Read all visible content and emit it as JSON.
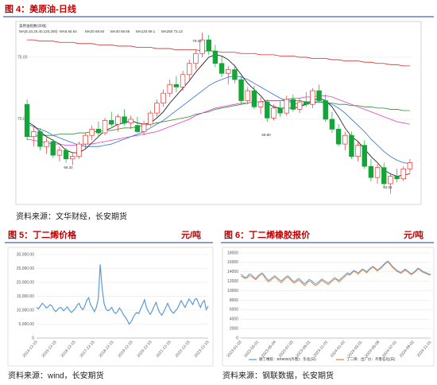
{
  "chart_data": [
    {
      "type": "candlestick",
      "title": "图 4：美原油-日线",
      "source": "资料来源：文华财经，长安期货",
      "label": "美原油指数(日线)",
      "legend_title": "MA(5,10,20,40,120,250)",
      "up_color": "#e8322e",
      "down_color": "#13a538",
      "ylim": [
        63.9,
        77.05
      ],
      "yticks": [
        {
          "value": 75,
          "label": "75.00"
        },
        {
          "value": 70,
          "label": "70.00"
        }
      ],
      "open": [
        71.2,
        68.6,
        69.0,
        67.8,
        68.2,
        67.1,
        67.5,
        66.8,
        67.0,
        68.0,
        68.7,
        69.2,
        68.9,
        69.9,
        69.6,
        70.2,
        69.7,
        69.5,
        69.0,
        69.6,
        70.5,
        71.3,
        72.1,
        72.8,
        72.6,
        73.6,
        74.5,
        75.3,
        76.4,
        75.5,
        74.5,
        73.7,
        74.0,
        73.2,
        71.5,
        72.3,
        71.0,
        71.4,
        70.1,
        70.9,
        70.5,
        71.6,
        70.8,
        71.4,
        71.2,
        72.3,
        71.5,
        70.0,
        69.2,
        68.0,
        68.7,
        67.0,
        67.9,
        66.2,
        65.3,
        66.1,
        64.8,
        65.4,
        65.2,
        66.0
      ],
      "high": [
        71.6,
        69.4,
        69.3,
        68.5,
        68.4,
        67.8,
        67.7,
        67.3,
        68.2,
        68.9,
        69.5,
        69.8,
        70.1,
        70.6,
        70.4,
        70.8,
        70.3,
        70.2,
        69.9,
        70.7,
        71.6,
        72.4,
        73.2,
        73.5,
        73.9,
        74.8,
        75.6,
        77.0,
        76.8,
        76.0,
        75.1,
        74.3,
        74.4,
        73.5,
        72.6,
        72.7,
        71.8,
        71.6,
        71.2,
        71.5,
        71.9,
        72.0,
        71.7,
        72.2,
        72.5,
        72.8,
        72.0,
        70.6,
        69.6,
        69.0,
        69.0,
        68.2,
        68.3,
        66.8,
        66.4,
        66.5,
        65.6,
        66.0,
        66.2,
        66.8
      ],
      "low": [
        68.3,
        67.8,
        67.5,
        67.2,
        66.9,
        66.6,
        66.5,
        66.3,
        66.8,
        67.6,
        68.3,
        68.6,
        68.7,
        69.4,
        69.0,
        69.5,
        69.2,
        68.9,
        68.7,
        69.4,
        70.2,
        71.0,
        71.8,
        72.2,
        72.3,
        73.2,
        74.0,
        75.0,
        75.2,
        74.2,
        73.4,
        72.8,
        72.9,
        71.2,
        71.2,
        70.8,
        70.4,
        69.8,
        69.9,
        70.2,
        70.3,
        70.6,
        70.5,
        71.0,
        70.9,
        71.3,
        69.8,
        68.9,
        67.8,
        67.5,
        66.8,
        66.6,
        66.0,
        65.0,
        64.8,
        64.5,
        64.0,
        64.9,
        65.0,
        65.7
      ],
      "close": [
        68.6,
        69.0,
        67.8,
        68.2,
        67.1,
        67.5,
        66.8,
        67.0,
        68.0,
        68.7,
        69.2,
        68.9,
        69.9,
        69.6,
        70.2,
        69.7,
        70.0,
        69.0,
        69.6,
        70.5,
        71.3,
        72.1,
        72.8,
        72.6,
        73.6,
        74.5,
        75.3,
        76.4,
        75.5,
        74.5,
        73.7,
        74.0,
        73.2,
        71.5,
        72.3,
        71.0,
        71.4,
        70.1,
        70.9,
        70.5,
        71.6,
        70.8,
        71.4,
        71.2,
        72.3,
        71.5,
        70.0,
        69.2,
        68.0,
        68.7,
        67.0,
        67.9,
        66.2,
        65.3,
        66.1,
        64.8,
        65.4,
        65.2,
        66.0,
        66.5
      ],
      "series": [
        {
          "name": "MA5 65.54",
          "color": "#111111",
          "values": [
            69.8,
            69.5,
            69.0,
            68.6,
            68.3,
            68.0,
            67.5,
            67.3,
            67.3,
            67.6,
            68.1,
            68.6,
            69.1,
            69.3,
            69.6,
            69.7,
            69.9,
            69.7,
            69.6,
            69.7,
            70.1,
            70.6,
            71.3,
            71.9,
            72.5,
            73.1,
            73.8,
            74.4,
            75.0,
            75.2,
            75.1,
            74.8,
            74.3,
            73.6,
            72.9,
            72.4,
            71.9,
            71.3,
            71.0,
            70.9,
            70.9,
            70.9,
            71.0,
            71.2,
            71.5,
            71.7,
            71.5,
            71.0,
            70.2,
            69.3,
            68.6,
            68.2,
            67.6,
            67.0,
            66.5,
            65.9,
            65.6,
            65.4,
            65.5,
            65.6
          ]
        },
        {
          "name": "MA20 69.84",
          "color": "#2f6fd6",
          "values": [
            69.6,
            69.4,
            69.2,
            69.0,
            68.7,
            68.5,
            68.3,
            68.1,
            67.9,
            67.8,
            67.8,
            67.8,
            67.9,
            68.0,
            68.2,
            68.4,
            68.6,
            68.8,
            69.0,
            69.3,
            69.6,
            69.9,
            70.3,
            70.7,
            71.1,
            71.5,
            71.9,
            72.3,
            72.7,
            73.0,
            73.2,
            73.4,
            73.5,
            73.4,
            73.2,
            72.9,
            72.6,
            72.3,
            72.0,
            71.7,
            71.5,
            71.3,
            71.2,
            71.2,
            71.3,
            71.4,
            71.4,
            71.2,
            70.9,
            70.5,
            70.0,
            69.5,
            69.0,
            68.4,
            67.9,
            67.4,
            67.0,
            66.7,
            66.5,
            66.4
          ]
        },
        {
          "name": "MA40 69.66",
          "color": "#e040c8",
          "values": [
            68.4,
            68.3,
            68.2,
            68.1,
            68.0,
            68.0,
            67.9,
            67.9,
            67.9,
            68.0,
            68.0,
            68.1,
            68.2,
            68.3,
            68.4,
            68.5,
            68.6,
            68.7,
            68.8,
            68.9,
            69.0,
            69.2,
            69.4,
            69.6,
            69.8,
            70.0,
            70.3,
            70.5,
            70.7,
            70.9,
            71.0,
            71.1,
            71.2,
            71.3,
            71.3,
            71.4,
            71.4,
            71.5,
            71.5,
            71.5,
            71.6,
            71.7,
            71.7,
            71.8,
            71.8,
            71.9,
            71.9,
            71.8,
            71.6,
            71.4,
            71.2,
            71.0,
            70.8,
            70.6,
            70.4,
            70.2,
            70.0,
            69.8,
            69.7,
            69.6
          ]
        },
        {
          "name": "MA120 69.1",
          "color": "#2e8b2e",
          "values": [
            68.6,
            68.6,
            68.7,
            68.7,
            68.7,
            68.8,
            68.8,
            68.8,
            68.9,
            68.9,
            69.0,
            69.0,
            69.1,
            69.1,
            69.2,
            69.3,
            69.3,
            69.4,
            69.5,
            69.6,
            69.7,
            69.8,
            69.9,
            70.0,
            70.1,
            70.2,
            70.4,
            70.5,
            70.6,
            70.8,
            70.9,
            71.0,
            71.1,
            71.2,
            71.3,
            71.4,
            71.4,
            71.5,
            71.5,
            71.5,
            71.5,
            71.5,
            71.5,
            71.4,
            71.4,
            71.4,
            71.3,
            71.3,
            71.2,
            71.2,
            71.1,
            71.1,
            71.0,
            71.0,
            70.9,
            70.9,
            70.8,
            70.8,
            70.7,
            70.7
          ]
        },
        {
          "name": "MA250 73.13",
          "color": "#d42a2a",
          "values": [
            76.4,
            76.4,
            76.3,
            76.3,
            76.3,
            76.2,
            76.2,
            76.2,
            76.1,
            76.1,
            76.1,
            76.0,
            76.0,
            76.0,
            75.9,
            75.9,
            75.9,
            75.8,
            75.8,
            75.8,
            75.7,
            75.7,
            75.7,
            75.6,
            75.6,
            75.6,
            75.6,
            75.5,
            75.5,
            75.5,
            75.4,
            75.4,
            75.4,
            75.3,
            75.3,
            75.3,
            75.2,
            75.2,
            75.2,
            75.1,
            75.1,
            75.1,
            75.0,
            75.0,
            74.9,
            74.9,
            74.9,
            74.8,
            74.8,
            74.7,
            74.7,
            74.7,
            74.6,
            74.6,
            74.5,
            74.5,
            74.4,
            74.4,
            74.3,
            74.3
          ]
        }
      ],
      "annotations": [
        "79.03",
        "66.32",
        "69.80",
        "64.01"
      ]
    },
    {
      "type": "line",
      "title": "图 5：丁二烯价格",
      "unit": "元/吨",
      "source": "资料来源：wind，长安期货",
      "grid": true,
      "ylim": [
        0,
        30000
      ],
      "yticks": [
        0,
        {
          "value": 5000,
          "label": "5,000.00"
        },
        {
          "value": 10000,
          "label": "10,000.00"
        },
        {
          "value": 15000,
          "label": "15,000.00"
        },
        {
          "value": 20000,
          "label": "20,000.00"
        },
        {
          "value": 25000,
          "label": "25,000.00"
        },
        {
          "value": 30000,
          "label": "30,000.00"
        }
      ],
      "xtick_labels": [
        "2014-12-15",
        "2015-12-15",
        "2016-12-15",
        "2017-12-15",
        "2018-12-15",
        "2019-12-15",
        "2020-12-15",
        "2021-12-15",
        "2022-12-15",
        "2023-12-15"
      ],
      "series": [
        {
          "name": "丁二烯",
          "color": "#5b9bd5",
          "values": [
            11000,
            10500,
            11500,
            12500,
            11800,
            10800,
            11200,
            12000,
            11500,
            10200,
            9500,
            10300,
            11000,
            10800,
            9800,
            10500,
            11200,
            10000,
            9200,
            9800,
            10500,
            11800,
            12500,
            11000,
            10200,
            11500,
            13500,
            14500,
            12000,
            10800,
            9500,
            11000,
            14000,
            26500,
            18000,
            12500,
            10500,
            9800,
            10200,
            11000,
            9500,
            8800,
            9500,
            10800,
            9800,
            8500,
            7500,
            6500,
            5000,
            5800,
            7200,
            8500,
            9200,
            8800,
            10500,
            12000,
            13800,
            11000,
            9500,
            8500,
            9800,
            11500,
            12800,
            10500,
            9000,
            8200,
            9500,
            11000,
            12500,
            10800,
            9600,
            8900,
            9800,
            10500,
            12000,
            13500,
            12200,
            11000,
            12500,
            14000,
            13200,
            12000,
            13800,
            14200,
            12500,
            11000,
            12800,
            13500,
            10200,
            11500
          ]
        }
      ]
    },
    {
      "type": "line",
      "title": "图 6：丁二烯橡胶报价",
      "unit": "元/吨",
      "source": "资料来源：钢联数据，长安期货",
      "grid": true,
      "ylim": [
        0,
        18000
      ],
      "yticks": [
        0,
        2000,
        4000,
        6000,
        8000,
        10000,
        12000,
        14000,
        16000,
        18000
      ],
      "xtick_labels": [
        "2023-01-03",
        "2023-03-01",
        "2023-05-04",
        "2023-07-03",
        "2023-09-01",
        "2023-11-01",
        "2024-01-02",
        "2024-03-01",
        "2024-05-06",
        "2024-07-01",
        "2024-09-02",
        "2024-11-01"
      ],
      "series": [
        {
          "name": "顺丁橡胶：BR9000(齐鲁)：华北(日)",
          "color": "#5b9bd5",
          "values": [
            13500,
            13200,
            12800,
            13000,
            13600,
            13400,
            12900,
            12600,
            13100,
            13500,
            13800,
            13300,
            12700,
            12200,
            12500,
            12900,
            13200,
            12800,
            12400,
            12100,
            12500,
            12900,
            13200,
            12800,
            12300,
            11900,
            12200,
            12600,
            12300,
            11800,
            11500,
            11900,
            12400,
            12200,
            11800,
            11400,
            11700,
            12100,
            12500,
            12200,
            11900,
            11600,
            12000,
            12400,
            12800,
            12500,
            12200,
            12600,
            13000,
            13400,
            13800,
            13500,
            13900,
            14300,
            14100,
            13800,
            14200,
            14600,
            14400,
            14000,
            14500,
            14900,
            15200,
            14800,
            14400,
            14700,
            15100,
            15600,
            16000,
            16300,
            15800,
            15200,
            14800,
            14400,
            14100,
            13900,
            14200,
            14600,
            14300,
            13900,
            13600,
            13900,
            14300,
            14800,
            14600,
            14200,
            14000,
            13800,
            13600,
            13500
          ]
        },
        {
          "name": "丁二烯：出厂价：齐鲁石化(日)",
          "color": "#ed7d31",
          "values": [
            13100,
            12900,
            12600,
            12700,
            13200,
            13100,
            12700,
            12300,
            12800,
            13300,
            13500,
            13000,
            12300,
            11900,
            12200,
            12600,
            12900,
            12500,
            12100,
            11700,
            12200,
            12600,
            12900,
            12500,
            12000,
            11600,
            11900,
            12300,
            12000,
            11500,
            11100,
            11600,
            12100,
            11900,
            11400,
            11100,
            11400,
            11800,
            12200,
            11900,
            11600,
            11300,
            11700,
            12100,
            12500,
            12300,
            11900,
            12300,
            12700,
            13100,
            13500,
            13300,
            13700,
            14100,
            13900,
            13500,
            14000,
            14400,
            14200,
            13800,
            14300,
            14700,
            15000,
            14600,
            14200,
            14500,
            14900,
            15400,
            15800,
            16100,
            15600,
            15000,
            14600,
            14200,
            13900,
            13700,
            14000,
            14400,
            14100,
            13700,
            13400,
            13700,
            14100,
            14600,
            14400,
            14000,
            13800,
            13600,
            13400,
            13300
          ]
        }
      ]
    }
  ]
}
